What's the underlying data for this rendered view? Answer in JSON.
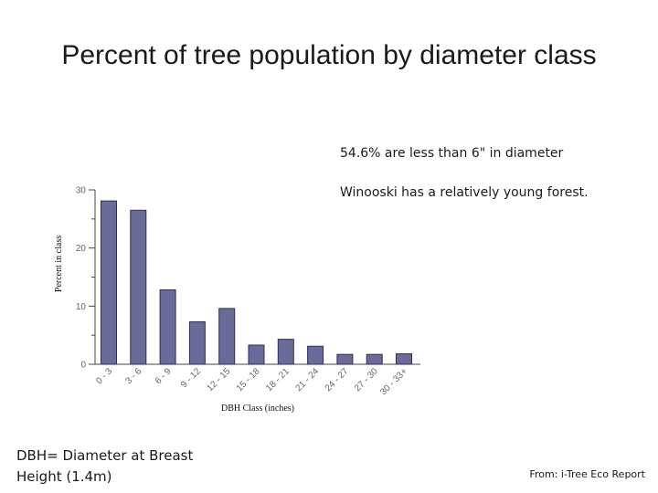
{
  "slide": {
    "title": "Percent of tree population by diameter class",
    "note_1": "54.6% are less than 6\" in diameter",
    "note_2": "Winooski has a relatively young forest.",
    "definition": "DBH= Diameter at Breast Height (1.4m)",
    "source": "From: i-Tree Eco Report"
  },
  "chart_data": {
    "type": "bar",
    "title": "",
    "xlabel": "DBH Class (inches)",
    "ylabel": "Percent in class",
    "categories": [
      "0 - 3",
      "3 - 6",
      "6 - 9",
      "9 - 12",
      "12 - 15",
      "15 - 18",
      "18 - 21",
      "21 - 24",
      "24 - 27",
      "27 - 30",
      "30 - 33+"
    ],
    "values": [
      28.1,
      26.5,
      12.8,
      7.3,
      9.6,
      3.3,
      4.3,
      3.1,
      1.7,
      1.7,
      1.8
    ],
    "ylim": [
      0,
      30
    ],
    "yticks": [
      0,
      10,
      20,
      30
    ],
    "bar_color": "#6b6b9a",
    "grid": false,
    "legend": "none"
  }
}
